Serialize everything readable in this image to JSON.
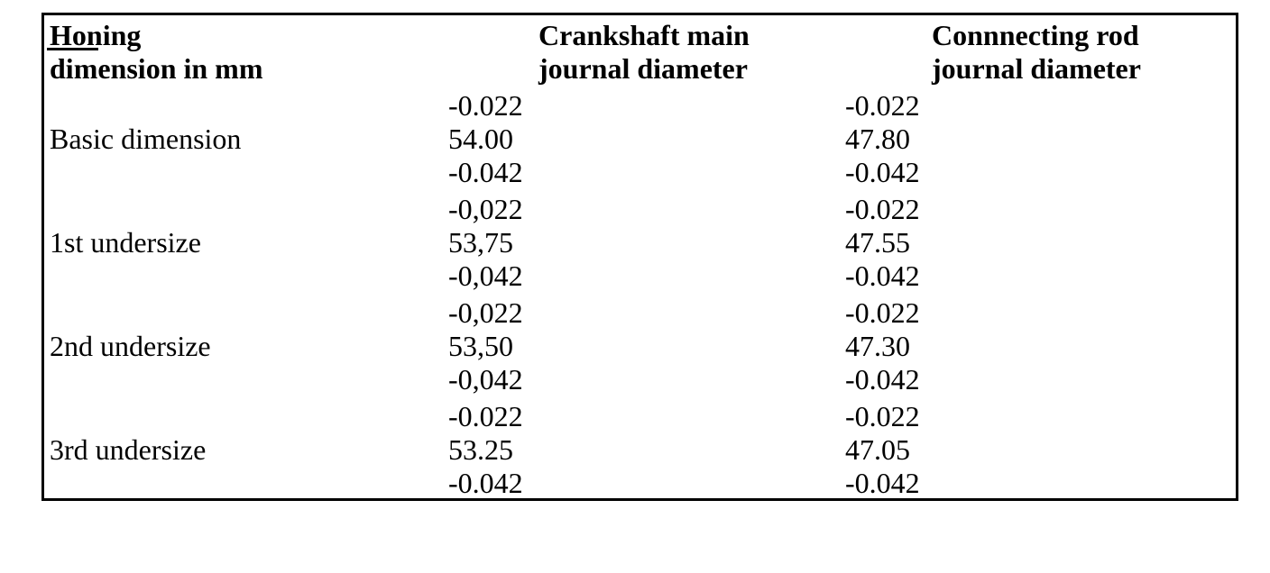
{
  "document": {
    "colors": {
      "text": "#000000",
      "border": "#000000",
      "background": "#ffffff"
    },
    "table": {
      "header": {
        "col1_line1": "Honing",
        "col1_line2": "dimension in mm",
        "col2_line1": "Crankshaft main",
        "col2_line2": "journal diameter",
        "col3_line1": "Connnecting rod",
        "col3_line2": "journal diameter"
      },
      "rows": [
        {
          "label": "Basic dimension",
          "main": [
            "-0.022",
            "54.00",
            "-0.042"
          ],
          "rod": [
            "-0.022",
            "47.80",
            "-0.042"
          ]
        },
        {
          "label": "1st undersize",
          "main": [
            "-0,022",
            "53,75",
            "-0,042"
          ],
          "rod": [
            "-0.022",
            "47.55",
            "-0.042"
          ]
        },
        {
          "label": "2nd undersize",
          "main": [
            "-0,022",
            "53,50",
            "-0,042"
          ],
          "rod": [
            "-0.022",
            "47.30",
            "-0.042"
          ]
        },
        {
          "label": "3rd undersize",
          "main": [
            "-0.022",
            "53.25",
            "-0.042"
          ],
          "rod": [
            "-0.022",
            "47.05",
            "-0.042"
          ]
        }
      ]
    }
  }
}
